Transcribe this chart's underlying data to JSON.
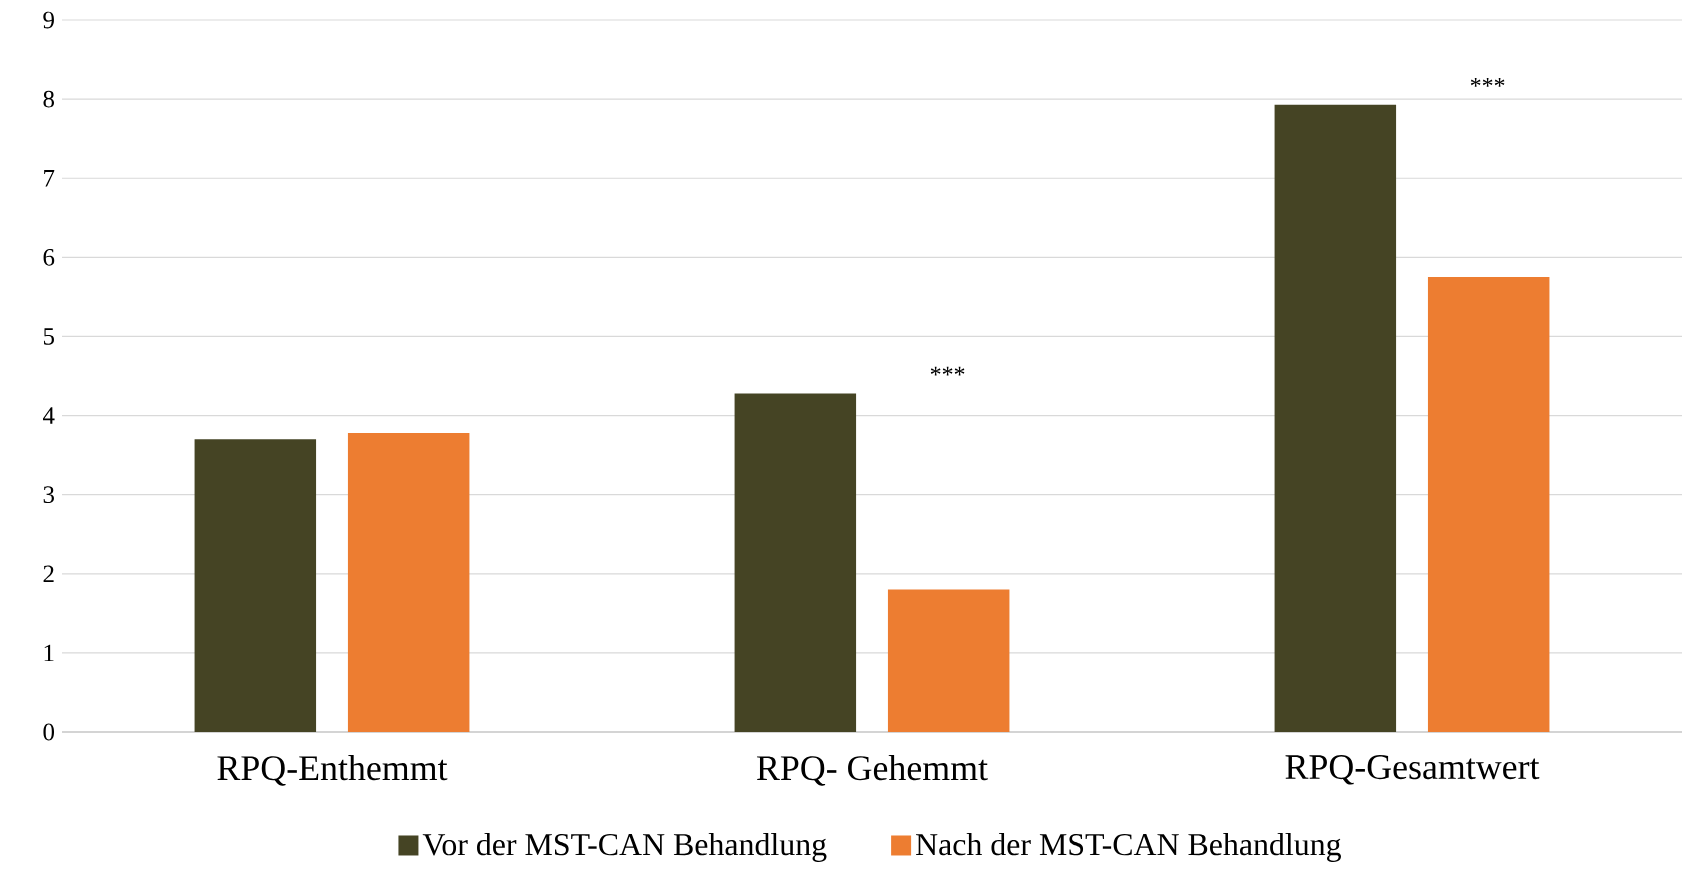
{
  "chart_data": {
    "type": "bar",
    "categories": [
      "RPQ-Enthemmt",
      "RPQ- Gehemmt",
      "RPQ-Gesamtwert"
    ],
    "series": [
      {
        "name": "Vor der MST-CAN Behandlung",
        "color": "#454424",
        "values": [
          3.7,
          4.28,
          7.93
        ]
      },
      {
        "name": "Nach der MST-CAN Behandlung",
        "color": "#ed7d31",
        "values": [
          3.78,
          1.8,
          5.75
        ]
      }
    ],
    "ylim": [
      0,
      9
    ],
    "yticks": [
      0,
      1,
      2,
      3,
      4,
      5,
      6,
      7,
      8,
      9
    ],
    "grid": "y",
    "legend": "bottom",
    "annotations": [
      "***",
      "***"
    ]
  }
}
